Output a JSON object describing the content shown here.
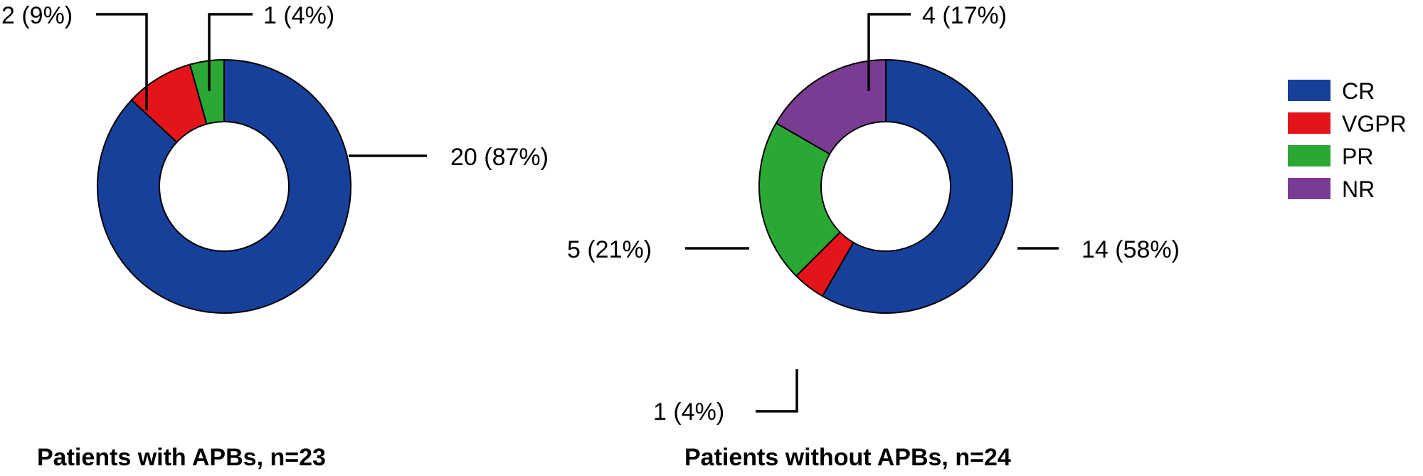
{
  "colors": {
    "CR": "#17409a",
    "VGPR": "#e3151b",
    "PR": "#2aa833",
    "NR": "#7a3b93"
  },
  "chart_data": [
    {
      "type": "pie",
      "title": "Patients with APBs, n=23",
      "slices": [
        {
          "category": "CR",
          "count": 20,
          "label": "20 (87%)"
        },
        {
          "category": "VGPR",
          "count": 2,
          "label": "2 (9%)"
        },
        {
          "category": "PR",
          "count": 1,
          "label": "1 (4%)"
        }
      ]
    },
    {
      "type": "pie",
      "title": "Patients without APBs, n=24",
      "slices": [
        {
          "category": "CR",
          "count": 14,
          "label": "14 (58%)"
        },
        {
          "category": "VGPR",
          "count": 1,
          "label": "1 (4%)"
        },
        {
          "category": "PR",
          "count": 5,
          "label": "5 (21%)"
        },
        {
          "category": "NR",
          "count": 4,
          "label": "4 (17%)"
        }
      ]
    }
  ],
  "legend": {
    "position": "right",
    "entries": [
      "CR",
      "VGPR",
      "PR",
      "NR"
    ]
  }
}
